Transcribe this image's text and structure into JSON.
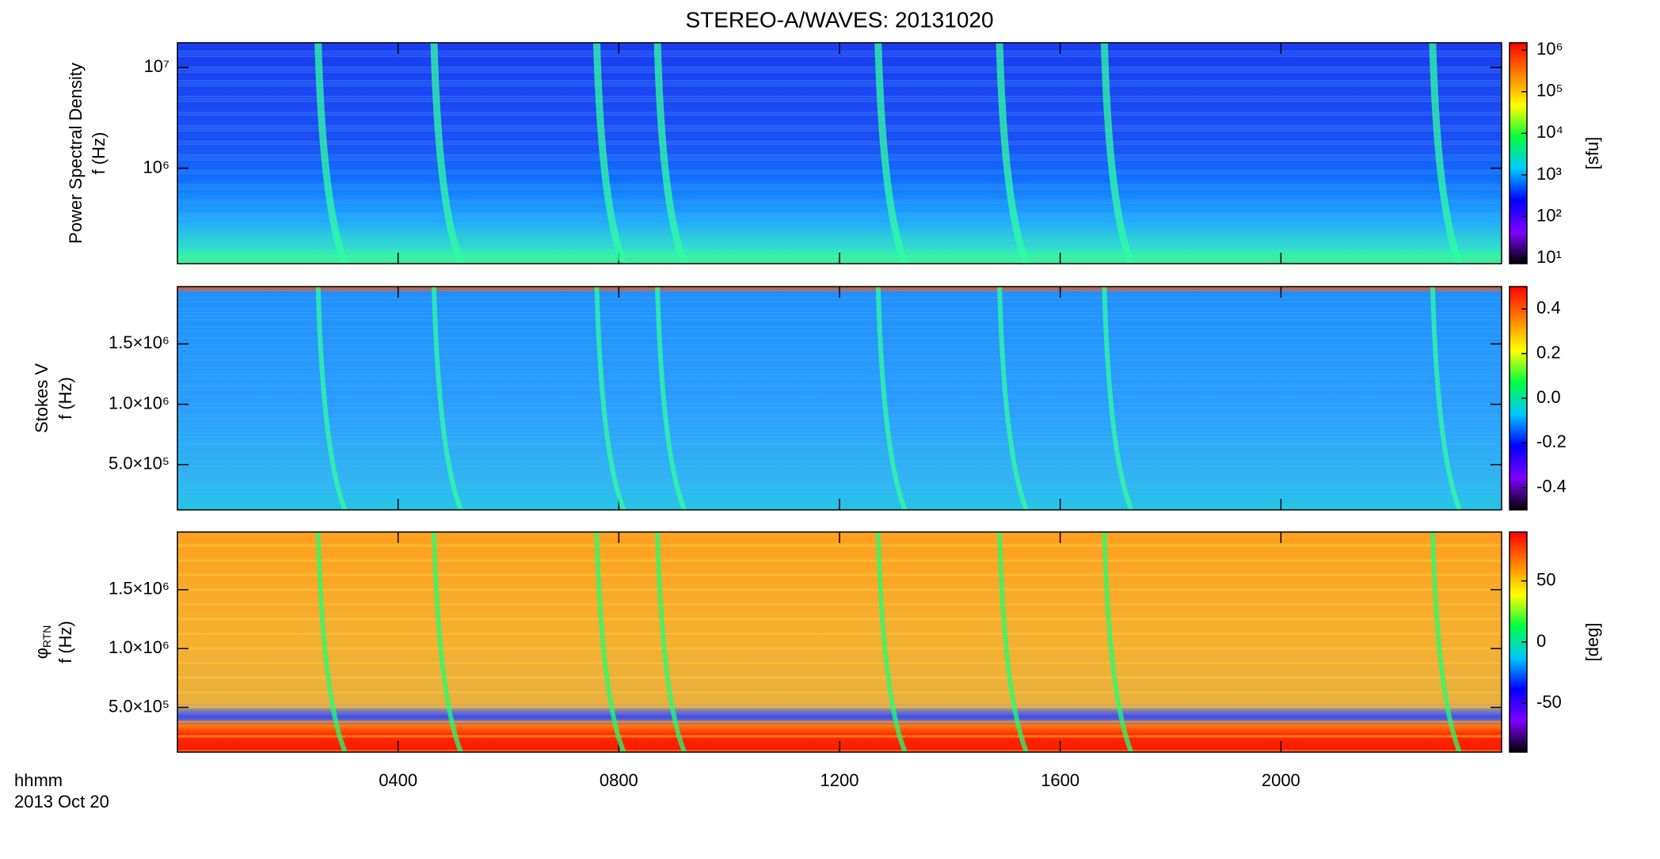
{
  "title": "STEREO-A/WAVES: 20131020",
  "time_label": "hhmm",
  "date_label": "2013 Oct 20",
  "chart_data": [
    {
      "type": "heatmap",
      "quantity": "Power Spectral Density",
      "ylabel": "f (Hz)",
      "yscale": "log",
      "ylim": [
        113000,
        17600000
      ],
      "yticks": [
        {
          "value": 1000000,
          "label": "10⁶"
        },
        {
          "value": 10000000,
          "label": "10⁷"
        }
      ],
      "xlim": [
        0,
        24
      ],
      "xticks": [
        4,
        8,
        12,
        16,
        20
      ],
      "colorbar": {
        "label": "[sfu]",
        "scale": "log",
        "lim": [
          7.4,
          1500000
        ],
        "ticks": [
          {
            "value": 10,
            "label": "10¹"
          },
          {
            "value": 100,
            "label": "10²"
          },
          {
            "value": 1000,
            "label": "10³"
          },
          {
            "value": 10000,
            "label": "10⁴"
          },
          {
            "value": 100000,
            "label": "10⁵"
          },
          {
            "value": 1000000,
            "label": "10⁶"
          }
        ]
      },
      "colormap": [
        "#000000",
        "#7f00ff",
        "#0000ff",
        "#00c8ff",
        "#00ff40",
        "#ffff00",
        "#ff8000",
        "#ff0000"
      ]
    },
    {
      "type": "heatmap",
      "quantity": "Stokes V",
      "ylabel": "f (Hz)",
      "yscale": "linear",
      "ylim": [
        125000,
        1975000
      ],
      "yticks": [
        {
          "value": 500000,
          "label": "5.0×10⁵"
        },
        {
          "value": 1000000,
          "label": "1.0×10⁶"
        },
        {
          "value": 1500000,
          "label": "1.5×10⁶"
        }
      ],
      "xlim": [
        0,
        24
      ],
      "xticks": [
        4,
        8,
        12,
        16,
        20
      ],
      "colorbar": {
        "label": "",
        "scale": "linear",
        "lim": [
          -0.5,
          0.5
        ],
        "ticks": [
          -0.4,
          -0.2,
          {
            "value": 0,
            "label": "0.0"
          },
          0.2,
          0.4
        ]
      },
      "colormap": [
        "#000000",
        "#7f00ff",
        "#0000ff",
        "#00c8ff",
        "#00ff40",
        "#ffff00",
        "#ff8000",
        "#ff0000"
      ]
    },
    {
      "type": "heatmap",
      "quantity": "φ",
      "quantity_sub": "RTN",
      "ylabel": "f (Hz)",
      "yscale": "linear",
      "ylim": [
        120000,
        1990000
      ],
      "yticks": [
        {
          "value": 500000,
          "label": "5.0×10⁵"
        },
        {
          "value": 1000000,
          "label": "1.0×10⁶"
        },
        {
          "value": 1500000,
          "label": "1.5×10⁶"
        }
      ],
      "xlim": [
        0,
        24
      ],
      "xticks": [
        {
          "value": 4,
          "label": "0400"
        },
        {
          "value": 8,
          "label": "0800"
        },
        {
          "value": 12,
          "label": "1200"
        },
        {
          "value": 16,
          "label": "1600"
        },
        {
          "value": 20,
          "label": "2000"
        }
      ],
      "colorbar": {
        "label": "[deg]",
        "scale": "linear",
        "lim": [
          -90,
          90
        ],
        "ticks": [
          -50,
          0,
          50
        ]
      },
      "colormap": [
        "#000000",
        "#7f00ff",
        "#0000ff",
        "#00c8ff",
        "#00ff40",
        "#ffff00",
        "#ff8000",
        "#ff0000"
      ]
    }
  ]
}
